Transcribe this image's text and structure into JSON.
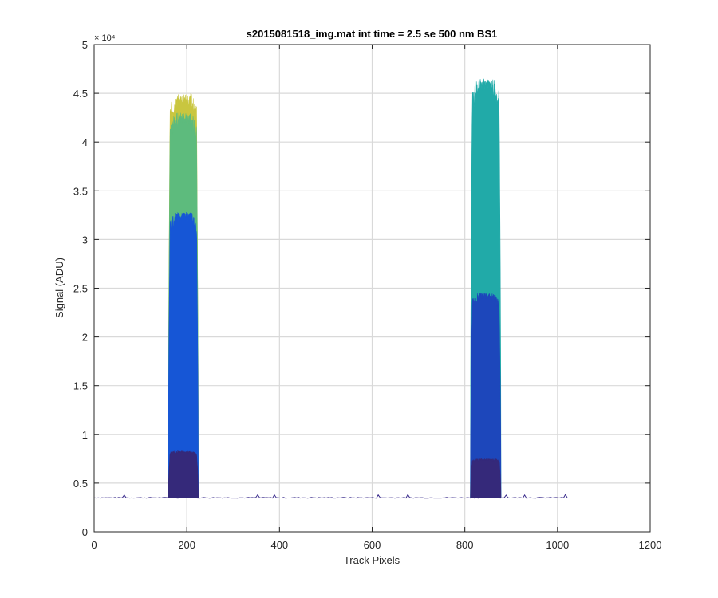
{
  "chart_data": {
    "type": "area",
    "title": "s2015081518_img.mat int time = 2.5 se  500 nm BS1",
    "xlabel": "Track Pixels",
    "ylabel": "Signal (ADU)",
    "xlim": [
      0,
      1200
    ],
    "ylim": [
      0,
      50000
    ],
    "x_ticks": [
      0,
      200,
      400,
      600,
      800,
      1000,
      1200
    ],
    "x_tick_labels": [
      "0",
      "200",
      "400",
      "600",
      "800",
      "1000",
      "1200"
    ],
    "y_ticks": [
      0,
      5000,
      10000,
      15000,
      20000,
      25000,
      30000,
      35000,
      40000,
      45000,
      50000
    ],
    "y_tick_labels": [
      "0",
      "0.5",
      "1",
      "1.5",
      "2",
      "2.5",
      "3",
      "3.5",
      "4",
      "4.5",
      "5"
    ],
    "y_exponent_label": "× 10⁴",
    "grid": true,
    "baseline": 3500,
    "baseline_x_range": [
      1,
      1024
    ],
    "peaks": [
      {
        "name": "left",
        "x_range": [
          160,
          225
        ],
        "layers": [
          {
            "color": "#35297a",
            "top": 8300
          },
          {
            "color": "#1656d6",
            "top": 32800
          },
          {
            "color": "#5dbb7d",
            "top": 43000
          },
          {
            "color": "#c9c63f",
            "top": 45000
          }
        ]
      },
      {
        "name": "right",
        "x_range": [
          812,
          878
        ],
        "layers": [
          {
            "color": "#35297a",
            "top": 7500
          },
          {
            "color": "#1d47bb",
            "top": 24500
          },
          {
            "color": "#21aaa8",
            "top": 46500
          }
        ]
      }
    ]
  }
}
